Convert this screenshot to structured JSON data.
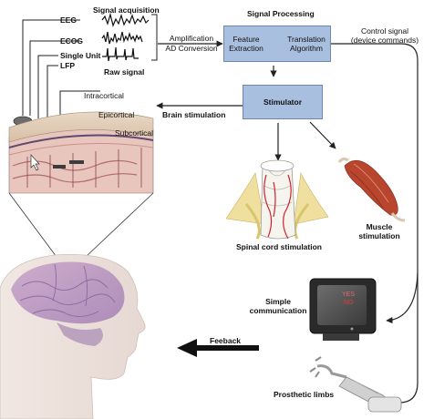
{
  "labels": {
    "signal_acquisition": "Signal acquisition",
    "eeg": "EEG",
    "ecog": "ECOG",
    "single_unit": "Single Unit",
    "lfp": "LFP",
    "raw_signal": "Raw signal",
    "amplification": "Amplification",
    "ad_conversion": "AD Conversion",
    "signal_processing": "Signal Processing",
    "feature_extraction": "Feature\nExtraction",
    "translation_algorithm": "Translation\nAlgorithm",
    "control_signal": "Control signal",
    "device_commands": "(device commands)",
    "stimulator": "Stimulator",
    "intracortical": "Intracortical",
    "epicortical": "Epicortical",
    "subcortical": "Subcortical",
    "brain_stimulation": "Brain stimulation",
    "spinal_cord_stimulation": "Spinal cord stimulation",
    "muscle_stimulation": "Muscle\nstimulation",
    "simple_communication": "Simple\ncommunication",
    "feedback": "Feeback",
    "prosthetic_limbs": "Prosthetic limbs",
    "screen_yes": "YES",
    "screen_no": "NO"
  },
  "colors": {
    "box_fill": "#a9bfe0",
    "box_border": "#6f86b3",
    "line": "#222222",
    "screen_yes": "#e06a6a",
    "screen_no": "#e03a3a"
  },
  "icons": [
    "signal-waveform-icon",
    "cortex-cross-section-icon",
    "spinal-cord-icon",
    "muscle-icon",
    "monitor-icon",
    "prosthetic-arm-icon",
    "human-head-icon"
  ]
}
